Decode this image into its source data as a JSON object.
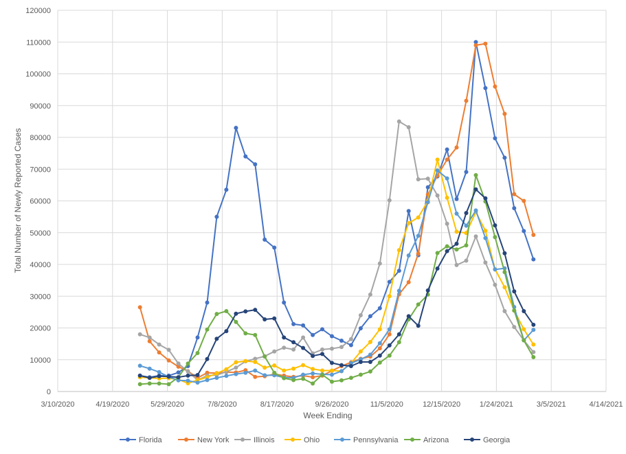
{
  "chart_data": {
    "type": "line",
    "xlabel": "Week Ending",
    "ylabel": "Total Number of Newly Reported Cases",
    "ylim": [
      0,
      120000
    ],
    "y_ticks": [
      "0",
      "10000",
      "20000",
      "30000",
      "40000",
      "50000",
      "60000",
      "70000",
      "80000",
      "90000",
      "100000",
      "110000",
      "120000"
    ],
    "xlim": [
      "2020-03-10",
      "2021-04-14"
    ],
    "x_ticks": [
      "3/10/2020",
      "4/19/2020",
      "5/29/2020",
      "7/8/2020",
      "8/17/2020",
      "9/26/2020",
      "11/5/2020",
      "12/15/2020",
      "1/24/2021",
      "3/5/2021",
      "4/14/2021"
    ],
    "x_dates": [
      "2020-05-09",
      "2020-05-16",
      "2020-05-23",
      "2020-05-30",
      "2020-06-06",
      "2020-06-13",
      "2020-06-20",
      "2020-06-27",
      "2020-07-04",
      "2020-07-11",
      "2020-07-18",
      "2020-07-25",
      "2020-08-01",
      "2020-08-08",
      "2020-08-15",
      "2020-08-22",
      "2020-08-29",
      "2020-09-05",
      "2020-09-12",
      "2020-09-19",
      "2020-09-26",
      "2020-10-03",
      "2020-10-10",
      "2020-10-17",
      "2020-10-24",
      "2020-10-31",
      "2020-11-07",
      "2020-11-14",
      "2020-11-21",
      "2020-11-28",
      "2020-12-05",
      "2020-12-12",
      "2020-12-19",
      "2020-12-26",
      "2021-01-02",
      "2021-01-09",
      "2021-01-16",
      "2021-01-23",
      "2021-01-30",
      "2021-02-06",
      "2021-02-13",
      "2021-02-20"
    ],
    "grid": true,
    "legend_position": "bottom",
    "series": [
      {
        "name": "Florida",
        "color": "#4472C4",
        "values": [
          5000,
          4500,
          5000,
          5000,
          6000,
          8000,
          17000,
          28000,
          55000,
          63500,
          83000,
          74000,
          71500,
          47800,
          45300,
          28000,
          21200,
          20800,
          17800,
          19600,
          17400,
          16000,
          14600,
          19900,
          23700,
          26200,
          34500,
          38000,
          56800,
          42900,
          64300,
          67700,
          76200,
          60600,
          69100,
          110000,
          95500,
          79700,
          73600,
          57700,
          50500,
          41600
        ]
      },
      {
        "name": "New York",
        "color": "#ED7D31",
        "values": [
          26500,
          15800,
          12300,
          9800,
          7800,
          6400,
          4300,
          5900,
          5800,
          6100,
          6000,
          6700,
          4600,
          4800,
          5500,
          5000,
          4600,
          5000,
          4500,
          5000,
          6500,
          8000,
          9200,
          10300,
          11000,
          13600,
          18000,
          30600,
          34400,
          43400,
          62000,
          68000,
          73000,
          76800,
          91500,
          109000,
          109500,
          96000,
          87400,
          62100,
          60000,
          49300
        ]
      },
      {
        "name": "Illinois",
        "color": "#A5A5A5",
        "values": [
          18000,
          17000,
          14800,
          13100,
          8800,
          6300,
          3600,
          5000,
          5200,
          6200,
          7500,
          9500,
          10300,
          11100,
          12600,
          13800,
          13200,
          17000,
          12000,
          13200,
          13500,
          14000,
          16500,
          24000,
          30500,
          40300,
          60200,
          85000,
          83200,
          66800,
          67000,
          61700,
          52800,
          39800,
          41200,
          48800,
          40600,
          33600,
          25300,
          20300,
          16100,
          12400
        ]
      },
      {
        "name": "Ohio",
        "color": "#FFC000",
        "values": [
          4500,
          4300,
          4100,
          4200,
          3800,
          2600,
          3600,
          4500,
          5700,
          7000,
          9200,
          9600,
          9300,
          7500,
          8200,
          6600,
          7200,
          8300,
          7100,
          6600,
          6600,
          6400,
          8900,
          12600,
          15600,
          19600,
          30000,
          44500,
          53000,
          54800,
          60000,
          73000,
          61000,
          50300,
          49900,
          56500,
          50600,
          38500,
          32800,
          25500,
          19600,
          14800
        ]
      },
      {
        "name": "Pennsylvania",
        "color": "#5B9BD5",
        "values": [
          8100,
          7200,
          6100,
          4600,
          3500,
          3400,
          2800,
          3600,
          4300,
          4900,
          5500,
          5900,
          6600,
          5100,
          5100,
          4400,
          4300,
          5300,
          5700,
          5400,
          5300,
          6400,
          8900,
          10100,
          11600,
          15200,
          19600,
          31700,
          42800,
          49000,
          59600,
          69600,
          67100,
          56000,
          52200,
          57000,
          48300,
          38400,
          38800,
          26600,
          16100,
          19400
        ]
      },
      {
        "name": "Arizona",
        "color": "#70AD47",
        "values": [
          2300,
          2500,
          2500,
          2300,
          4500,
          8800,
          12100,
          19500,
          24400,
          25300,
          21900,
          18300,
          17800,
          11000,
          5900,
          4200,
          3600,
          4000,
          2500,
          5300,
          3100,
          3500,
          4300,
          5300,
          6300,
          9100,
          11300,
          15500,
          22700,
          27400,
          30500,
          43600,
          45700,
          44700,
          46000,
          68100,
          59800,
          48600,
          37600,
          25500,
          16100,
          10800
        ]
      },
      {
        "name": "Georgia",
        "color": "#264478",
        "values": [
          5000,
          4300,
          4800,
          4700,
          4500,
          5000,
          5200,
          10200,
          16600,
          19000,
          24500,
          25200,
          25700,
          22700,
          23000,
          17000,
          15500,
          13700,
          11200,
          11800,
          9000,
          8300,
          8000,
          9300,
          9300,
          11300,
          14500,
          18000,
          23700,
          20700,
          31800,
          38700,
          44200,
          46500,
          56200,
          63600,
          60800,
          52300,
          43500,
          31500,
          25300,
          21000
        ]
      }
    ]
  }
}
